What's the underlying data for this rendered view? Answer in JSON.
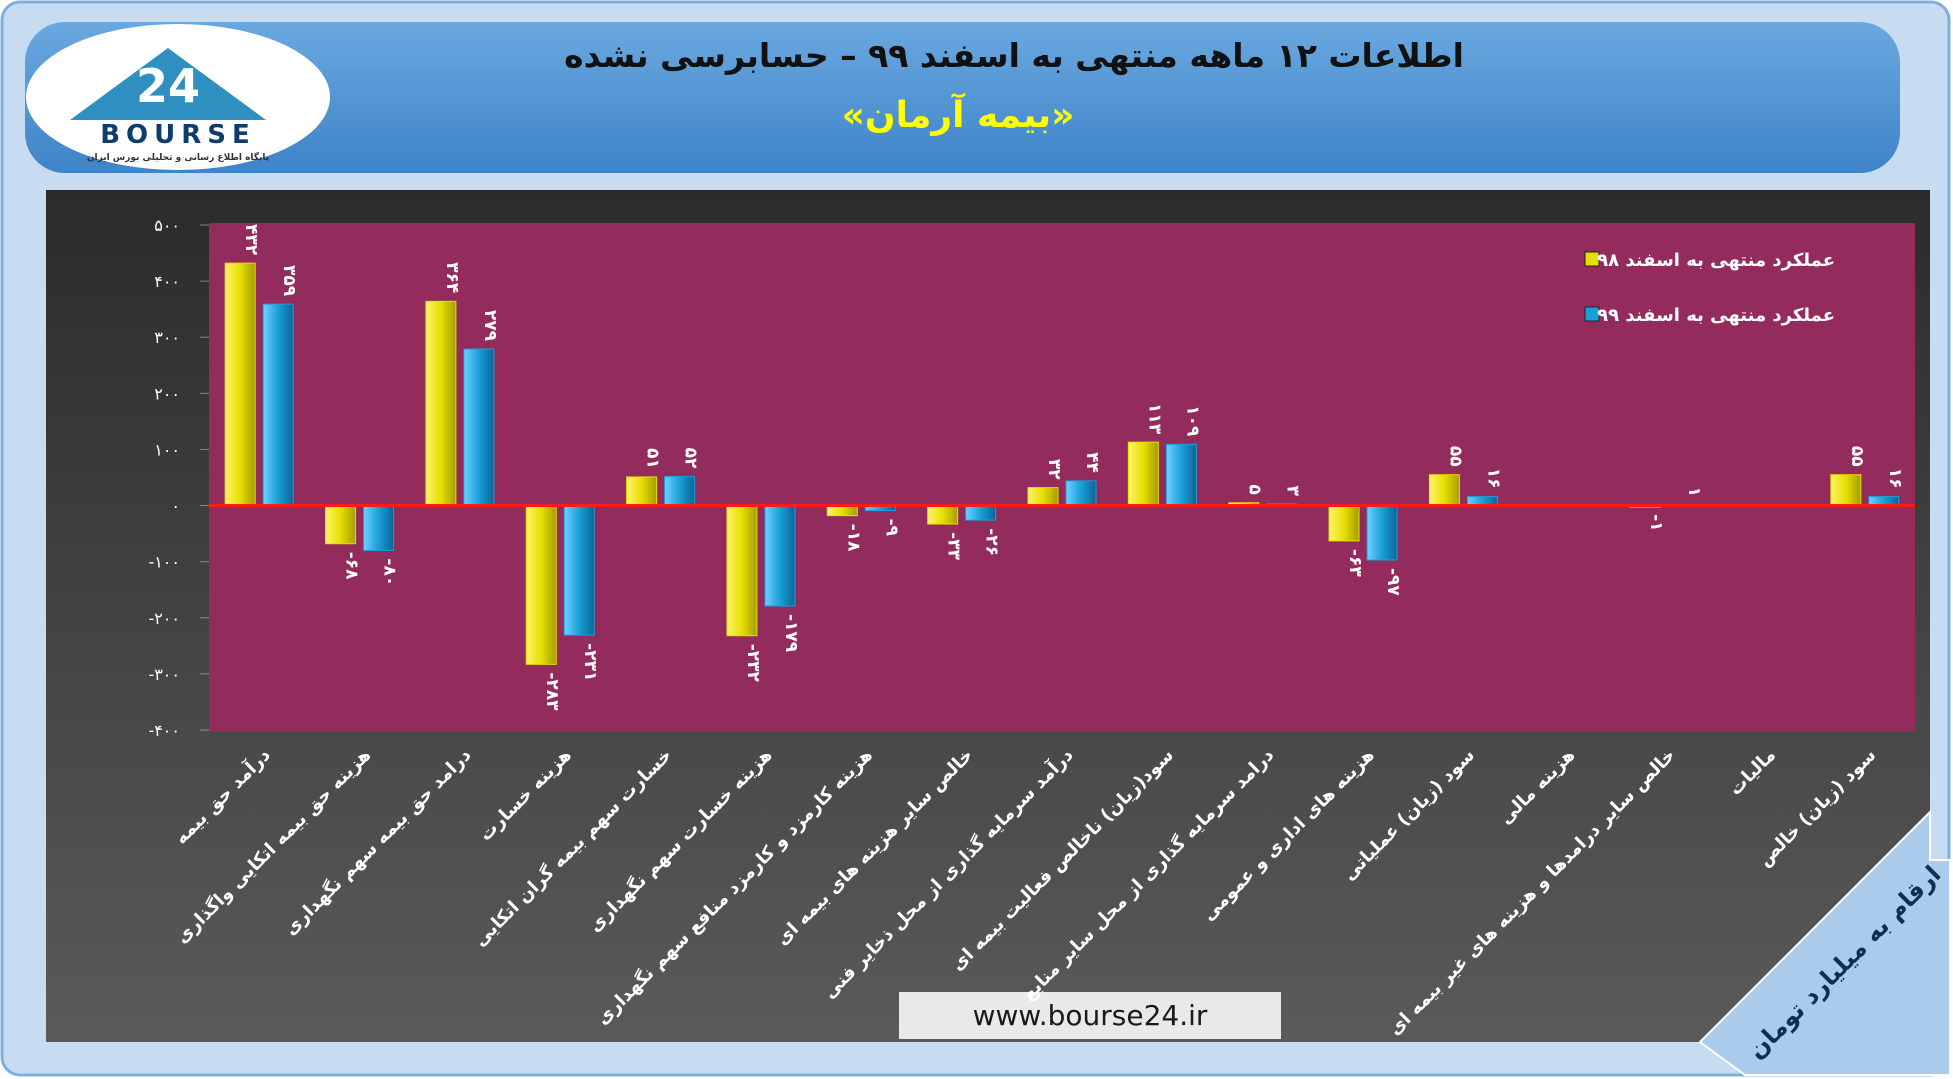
{
  "logo": {
    "number": "24",
    "name": "BOURSE",
    "tagline": "پایگاه اطلاع رسانی و تحلیلی بورس ایران"
  },
  "footer": {
    "url": "www.bourse24.ir"
  },
  "unit_note": "ارقام به میلیارد تومان",
  "chart_data": {
    "type": "bar",
    "title": "اطلاعات ۱۲ ماهه منتهی به اسفند ۹۹ – حسابرسی نشده",
    "subtitle": "«بیمه آرمان»",
    "categories": [
      "درآمد حق بیمه",
      "هزینه حق بیمه اتکایی واگذاری",
      "درامد حق بیمه سهم نگهداری",
      "هزینه خسارت",
      "خسارت سهم بیمه گران اتکایی",
      "هزینه خسارت سهم نگهداری",
      "هزینه کارمزد و کارمزد منافع سهم نگهداری",
      "خالص سایر هزینه های بیمه ای",
      "درآمد سرمایه گذاری از محل ذخایر فنی",
      "سود(زیان) ناخالص فعالیت بیمه ای",
      "درامد سرمایه گذاری از محل سایر منابع",
      "هزینه های اداری و عمومی",
      "سود (زیان) عملیاتی",
      "هزینه مالی",
      "خالص سایر درامدها و هزینه های غیر بیمه ای",
      "مالیات",
      "سود (زیان) خالص"
    ],
    "series": [
      {
        "name": "عملکرد منتهی به اسفند ۹۸",
        "color": "#e6df00",
        "values": [
          432,
          -68,
          364,
          -283,
          51,
          -232,
          -18,
          -33,
          32,
          113,
          5,
          -63,
          55,
          null,
          -1,
          null,
          55
        ],
        "value_labels": [
          "۴۳۲",
          "-۶۸",
          "۳۶۴",
          "-۲۸۳",
          "۵۱",
          "-۲۳۲",
          "-۱۸",
          "-۳۳",
          "۳۲",
          "۱۱۳",
          "۵",
          "-۶۳",
          "۵۵",
          null,
          "-۱",
          null,
          "۵۵"
        ]
      },
      {
        "name": "عملکرد منتهی به اسفند ۹۹",
        "color": "#1a9fd8",
        "values": [
          359,
          -80,
          279,
          -231,
          52,
          -179,
          -9,
          -26,
          44,
          109,
          3,
          -97,
          16,
          null,
          1,
          null,
          16
        ],
        "value_labels": [
          "۳۵۹",
          "-۸۰",
          "۲۷۹",
          "-۲۳۱",
          "۵۲",
          "-۱۷۹",
          "-۹",
          "-۲۶",
          "۴۴",
          "۱۰۹",
          "۳",
          "-۹۷",
          "۱۶",
          null,
          "۱",
          null,
          "۱۶"
        ]
      }
    ],
    "ylim": [
      -400,
      500
    ],
    "yticks": [
      {
        "value": 500,
        "label": "۵۰۰"
      },
      {
        "value": 400,
        "label": "۴۰۰"
      },
      {
        "value": 300,
        "label": "۳۰۰"
      },
      {
        "value": 200,
        "label": "۲۰۰"
      },
      {
        "value": 100,
        "label": "۱۰۰"
      },
      {
        "value": 0,
        "label": "۰"
      },
      {
        "value": -100,
        "label": "-۱۰۰"
      },
      {
        "value": -200,
        "label": "-۲۰۰"
      },
      {
        "value": -300,
        "label": "-۳۰۰"
      },
      {
        "value": -400,
        "label": "-۴۰۰"
      }
    ],
    "grid": false,
    "legend": "top-right"
  }
}
